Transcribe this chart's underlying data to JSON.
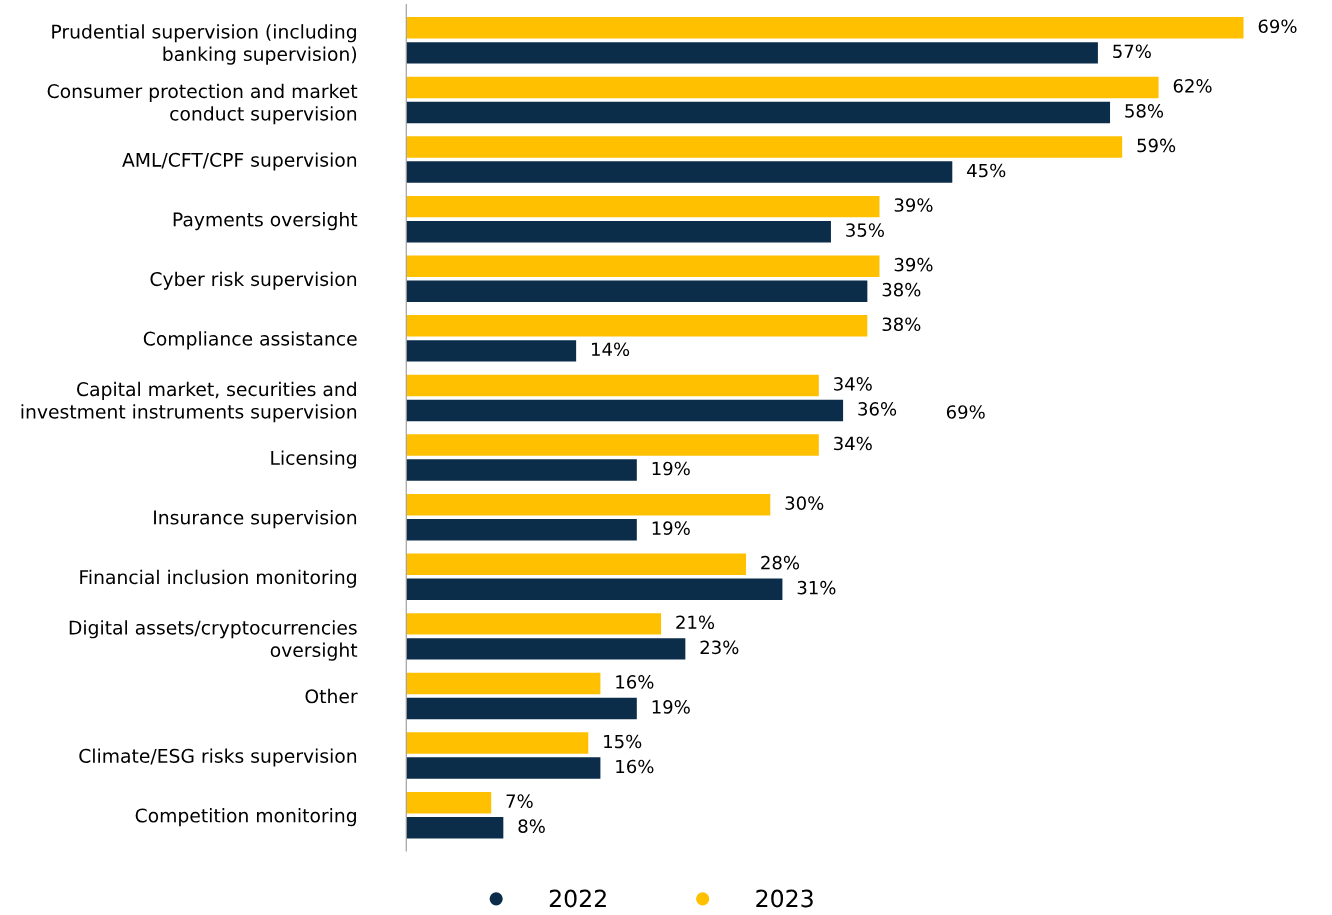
{
  "chart_data": {
    "type": "bar",
    "orientation": "horizontal",
    "categories": [
      "Prudential supervision (including\nbanking supervision)",
      "Consumer protection and market\nconduct supervision",
      "AML/CFT/CPF supervision",
      "Payments oversight",
      "Cyber risk supervision",
      "Compliance assistance",
      "Capital market, securities and\ninvestment instruments supervision",
      "Licensing",
      "Insurance supervision",
      "Financial inclusion monitoring",
      "Digital assets/cryptocurrencies\noversight",
      "Other",
      "Climate/ESG risks supervision",
      "Competition monitoring"
    ],
    "series": [
      {
        "name": "2022",
        "color": "#0b2d4a",
        "values": [
          57,
          58,
          45,
          35,
          38,
          14,
          36,
          19,
          19,
          31,
          23,
          19,
          16,
          8
        ],
        "value_labels": [
          "57%",
          "58%",
          "45%",
          "35%",
          "38%",
          "14%",
          "36%",
          "19%",
          "19%",
          "31%",
          "23%",
          "19%",
          "16%",
          "8%"
        ]
      },
      {
        "name": "2023",
        "color": "#ffc000",
        "values": [
          69,
          62,
          59,
          39,
          39,
          38,
          34,
          34,
          30,
          28,
          21,
          16,
          15,
          7
        ],
        "value_labels": [
          "69%",
          "62%",
          "59%",
          "39%",
          "39%",
          "38%",
          "34%",
          "34%",
          "30%",
          "28%",
          "21%",
          "16%",
          "15%",
          "7%"
        ]
      }
    ],
    "annotations": [
      "69%"
    ],
    "legend": "bottom",
    "grid": false
  }
}
